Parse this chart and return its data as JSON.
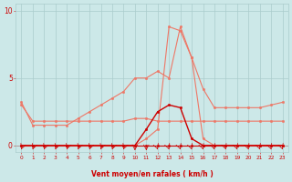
{
  "x_ticks": [
    0,
    1,
    2,
    3,
    4,
    5,
    6,
    7,
    8,
    9,
    10,
    11,
    12,
    13,
    14,
    15,
    16,
    17,
    18,
    19,
    20,
    21,
    22,
    23
  ],
  "bg_color": "#cce8e8",
  "grid_color": "#aacccc",
  "line_color_dark": "#cc0000",
  "line_color_light": "#ee7766",
  "xlabel": "Vent moyen/en rafales ( km/h )",
  "ylim": [
    -0.5,
    10.5
  ],
  "xlim": [
    -0.5,
    23.5
  ],
  "yticks": [
    0,
    5,
    10
  ],
  "lines": [
    {
      "name": "line_baseline_dark",
      "color": "dark",
      "lw": 0.8,
      "x": [
        0,
        1,
        2,
        3,
        4,
        5,
        6,
        7,
        8,
        9,
        10,
        11,
        12,
        13,
        14,
        15,
        16,
        17,
        18,
        19,
        20,
        21,
        22,
        23
      ],
      "y": [
        0.0,
        0.0,
        0.0,
        0.0,
        0.0,
        0.0,
        0.0,
        0.0,
        0.0,
        0.0,
        0.0,
        0.0,
        0.0,
        0.0,
        0.0,
        0.0,
        0.0,
        0.0,
        0.0,
        0.0,
        0.0,
        0.0,
        0.0,
        0.0
      ]
    },
    {
      "name": "line_mean_light",
      "color": "light",
      "lw": 0.8,
      "x": [
        0,
        1,
        2,
        3,
        4,
        5,
        6,
        7,
        8,
        9,
        10,
        11,
        12,
        13,
        14,
        15,
        16,
        17,
        18,
        19,
        20,
        21,
        22,
        23
      ],
      "y": [
        3.0,
        1.8,
        1.8,
        1.8,
        1.8,
        1.8,
        1.8,
        1.8,
        1.8,
        1.8,
        2.0,
        2.0,
        1.8,
        1.8,
        1.8,
        1.8,
        1.8,
        1.8,
        1.8,
        1.8,
        1.8,
        1.8,
        1.8,
        1.8
      ]
    },
    {
      "name": "line_gust_light",
      "color": "light",
      "lw": 0.8,
      "x": [
        0,
        1,
        2,
        3,
        4,
        5,
        6,
        7,
        8,
        9,
        10,
        11,
        12,
        13,
        14,
        15,
        16,
        17,
        18,
        19,
        20,
        21,
        22,
        23
      ],
      "y": [
        3.2,
        1.5,
        1.5,
        1.5,
        1.5,
        2.0,
        2.5,
        3.0,
        3.5,
        4.0,
        5.0,
        5.0,
        5.5,
        5.0,
        8.8,
        6.5,
        4.2,
        2.8,
        2.8,
        2.8,
        2.8,
        2.8,
        3.0,
        3.2
      ]
    },
    {
      "name": "line_peak_light",
      "color": "light",
      "lw": 0.8,
      "x": [
        0,
        1,
        2,
        3,
        4,
        5,
        6,
        7,
        8,
        9,
        10,
        11,
        12,
        13,
        14,
        15,
        16,
        17,
        18,
        19,
        20,
        21,
        22,
        23
      ],
      "y": [
        0.0,
        0.0,
        0.0,
        0.0,
        0.0,
        0.0,
        0.0,
        0.0,
        0.0,
        0.0,
        0.0,
        0.5,
        1.2,
        8.8,
        8.5,
        6.5,
        0.5,
        0.0,
        0.0,
        0.0,
        0.0,
        0.0,
        0.0,
        0.0
      ]
    },
    {
      "name": "line_actual_dark",
      "color": "dark",
      "lw": 1.0,
      "x": [
        0,
        1,
        2,
        3,
        4,
        5,
        6,
        7,
        8,
        9,
        10,
        11,
        12,
        13,
        14,
        15,
        16,
        17,
        18,
        19,
        20,
        21,
        22,
        23
      ],
      "y": [
        0.0,
        0.0,
        0.0,
        0.0,
        0.0,
        0.0,
        0.0,
        0.0,
        0.0,
        0.0,
        0.0,
        1.2,
        2.5,
        3.0,
        2.8,
        0.5,
        0.0,
        0.0,
        0.0,
        0.0,
        0.0,
        0.0,
        0.0,
        0.0
      ]
    }
  ],
  "arrows": {
    "x": [
      0,
      1,
      2,
      3,
      4,
      5,
      6,
      7,
      8,
      9,
      10,
      11,
      12,
      13,
      14,
      15,
      16,
      17,
      18,
      19,
      20,
      21,
      22,
      23
    ],
    "angles_deg": [
      225,
      225,
      225,
      225,
      225,
      225,
      225,
      225,
      225,
      225,
      270,
      270,
      315,
      315,
      315,
      315,
      315,
      315,
      315,
      315,
      315,
      315,
      315,
      315
    ]
  }
}
